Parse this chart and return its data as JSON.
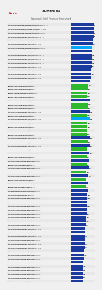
{
  "title": "3DMark V1",
  "subtitle": "Reasonable Intel Processor Benchmark",
  "bg_color": "#f0f0f0",
  "bar_color_blue": "#1a3a9f",
  "bar_color_green": "#2eb82e",
  "bar_color_highlight_blue": "#00aaff",
  "bar_color_highlight_green": "#00dd00",
  "text_color": "#111111",
  "title_color": "#111111",
  "entries": [
    {
      "label": "Intel Core i9-13900K 5.8GHz (Solo) DDR5-5600 w/test 4 cs Turbo 1.1",
      "value": 2950,
      "is_amd": false,
      "highlight": false
    },
    {
      "label": "Intel Core i9-13900KF 5.8GHz (Solo) DDR5-5600 w/test 4 cs Turbo",
      "value": 2920,
      "is_amd": false,
      "highlight": false
    },
    {
      "label": "Intel Core i9-13900K 5.8GHz (Solo) DDR5-5200 w/test 4 cs Turbo",
      "value": 2890,
      "is_amd": false,
      "highlight": false
    },
    {
      "label": "Intel Core i9-13900K 5.8GHz DDR5-5200 w/test 4 cs Turbo 1.1",
      "value": 2860,
      "is_amd": false,
      "highlight": false
    },
    {
      "label": "Intel Core i9-13900K 5.5GHz DDR5-5200 w/test 4 cs Turbo",
      "value": 2820,
      "is_amd": false,
      "highlight": false
    },
    {
      "label": "Intel Core i9-13900K 5.4GHz DDR5-5200 w/test 4 cs Turbo",
      "value": 2780,
      "is_amd": false,
      "highlight": false
    },
    {
      "label": "Intel Core i7-13700K 5.4GHz (Solo) DDR5-5200 w/test 4 cs Turbo",
      "value": 2750,
      "is_amd": false,
      "highlight": true
    },
    {
      "label": "Intel Core i7-13700K 5.4GHz DDR5-5200 w/test 4 cs Turbo",
      "value": 2720,
      "is_amd": false,
      "highlight": false
    },
    {
      "label": "Intel Core i9-13900K 5.8GHz DDR4-3600 w/test 4 cs Turbo 1.1",
      "value": 2690,
      "is_amd": false,
      "highlight": false
    },
    {
      "label": "Intel Core i9-12900K 5.2GHz DDR5-5200 w/test 4 cs Turbo 1.1",
      "value": 2660,
      "is_amd": false,
      "highlight": false
    },
    {
      "label": "Intel Core i9-12900K 5.2GHz DDR4-3600 w/test 4 cs Turbo 1.1",
      "value": 2630,
      "is_amd": false,
      "highlight": false
    },
    {
      "label": "Intel Core i9-13900K 5.8GHz DDR4-3600 w/test 4 cs Turbo",
      "value": 2600,
      "is_amd": false,
      "highlight": false
    },
    {
      "label": "Intel Core i9-12900KF 5.2GHz DDR4-3200 w/test 4 cs Turbo 1.1",
      "value": 2570,
      "is_amd": false,
      "highlight": false
    },
    {
      "label": "Intel Core i9-12900K 5.2GHz DDR5-5200 w/test 4 cs Turbo",
      "value": 2540,
      "is_amd": false,
      "highlight": false
    },
    {
      "label": "Intel Core i9-12900K 5.2GHz DDR4-3600 w/test 4 cs Turbo",
      "value": 2510,
      "is_amd": false,
      "highlight": false
    },
    {
      "label": "Intel Core i7-12700K 5.0GHz DDR5-5200 w/test 4 cs Turbo",
      "value": 2480,
      "is_amd": false,
      "highlight": false
    },
    {
      "label": "AMD Ryzen 9 5950X 4.9GHz DDR4-3800 w/test 4 cs",
      "value": 2200,
      "is_amd": true,
      "highlight": false
    },
    {
      "label": "AMD Ryzen 9 5900X 4.8GHz DDR4-3800 w/test 4 cs",
      "value": 2160,
      "is_amd": true,
      "highlight": false
    },
    {
      "label": "AMD Ryzen 7 5800X3D 4.5GHz DDR4-3800 w/test 4 cs",
      "value": 2120,
      "is_amd": true,
      "highlight": false
    },
    {
      "label": "AMD Ryzen 7 5800X 4.7GHz DDR4-3800 w/test 4 cs",
      "value": 2080,
      "is_amd": true,
      "highlight": false
    },
    {
      "label": "Intel Core i5-12600K 4.9GHz DDR5-5200 w/test 4 cs Turbo",
      "value": 2450,
      "is_amd": false,
      "highlight": false
    },
    {
      "label": "AMD Ryzen 9 5950X 4.9GHz DDR4-3600 w/test 4 cs",
      "value": 2180,
      "is_amd": true,
      "highlight": false
    },
    {
      "label": "AMD Ryzen 9 5900X 4.8GHz DDR4-3600 w/test 4 cs",
      "value": 2140,
      "is_amd": true,
      "highlight": false
    },
    {
      "label": "Intel Core i7-12700K 5.0GHz DDR4-3600 w/test 4 cs Turbo",
      "value": 2420,
      "is_amd": false,
      "highlight": false
    },
    {
      "label": "AMD Ryzen 5 5600X 4.6GHz DDR4-3800 w/test 4 cs",
      "value": 2040,
      "is_amd": true,
      "highlight": false
    },
    {
      "label": "Intel Core i5-13600K 5.1GHz DDR5-5200 w/test 4 cs Turbo",
      "value": 2390,
      "is_amd": false,
      "highlight": true
    },
    {
      "label": "AMD Ryzen 9 7900X 5.6GHz DDR5-6000 w/test 4 cs",
      "value": 2100,
      "is_amd": true,
      "highlight": false
    },
    {
      "label": "AMD Ryzen 9 7950X 5.7GHz DDR5-6000 w/test 4 cs",
      "value": 2120,
      "is_amd": true,
      "highlight": false
    },
    {
      "label": "AMD Ryzen 7 7700X 5.4GHz DDR5-6000 w/test 4 cs",
      "value": 2060,
      "is_amd": true,
      "highlight": false
    },
    {
      "label": "AMD Ryzen 5 7600X 5.3GHz DDR5-6000 w/test 4 cs",
      "value": 2000,
      "is_amd": true,
      "highlight": false
    },
    {
      "label": "Intel Core i5-12600K 4.9GHz DDR4-3600 w/test 4 cs Turbo",
      "value": 2360,
      "is_amd": false,
      "highlight": false
    },
    {
      "label": "AMD Ryzen 9 5950X 4.9GHz DDR4-3200 w/test 4 cs",
      "value": 2150,
      "is_amd": true,
      "highlight": false
    },
    {
      "label": "Intel Core i5-13600K 5.1GHz DDR4-3600 w/test 4 cs Turbo",
      "value": 2330,
      "is_amd": false,
      "highlight": false
    },
    {
      "label": "AMD Ryzen 5 5600X 4.6GHz DDR4-3600 w/test 4 cs",
      "value": 2010,
      "is_amd": true,
      "highlight": false
    },
    {
      "label": "Intel Core i3-13100 4.5GHz DDR5-5200 w/test 4 cs Turbo",
      "value": 2300,
      "is_amd": false,
      "highlight": false
    },
    {
      "label": "AMD Ryzen 3 3300X 4.3GHz DDR4-3600 w/test 4 cs",
      "value": 1980,
      "is_amd": true,
      "highlight": false
    },
    {
      "label": "Intel Core i3-12100 4.3GHz DDR5-5200 w/test 4 cs Turbo",
      "value": 2270,
      "is_amd": false,
      "highlight": false
    },
    {
      "label": "AMD Ryzen 5 5600 4.4GHz DDR4-3600 w/test 4 cs",
      "value": 1970,
      "is_amd": true,
      "highlight": false
    },
    {
      "label": "Intel Core i3-13100 4.5GHz DDR4-3200 w/test 4 cs Turbo",
      "value": 2240,
      "is_amd": false,
      "highlight": false
    },
    {
      "label": "AMD Ryzen 5 5500 4.2GHz DDR4-3200 w/test 4 cs",
      "value": 1940,
      "is_amd": true,
      "highlight": false
    },
    {
      "label": "Intel Core i3-12100 4.3GHz DDR4-3200 w/test 4 cs Turbo",
      "value": 2210,
      "is_amd": false,
      "highlight": false
    },
    {
      "label": "AMD Ryzen 5 4600G 4.2GHz DDR4-3200 w/test 4 cs",
      "value": 1900,
      "is_amd": true,
      "highlight": false
    },
    {
      "label": "Intel Pentium Gold G7400 3.7GHz DDR5-4400 w/test 4 cs",
      "value": 2180,
      "is_amd": false,
      "highlight": false
    },
    {
      "label": "AMD Athlon 3000G 3.5GHz DDR4-2933 w/test 4 cs",
      "value": 1860,
      "is_amd": true,
      "highlight": false
    },
    {
      "label": "Intel Pentium Gold G7400 3.7GHz DDR4-3200 w/test 4 cs",
      "value": 2150,
      "is_amd": false,
      "highlight": false
    },
    {
      "label": "Intel Core i9-12900K 5.2GHz DDR5-5200 stock",
      "value": 2120,
      "is_amd": false,
      "highlight": false
    },
    {
      "label": "Intel Core i5-12400 4.4GHz DDR5-5200 w/test 4 cs Turbo",
      "value": 2090,
      "is_amd": false,
      "highlight": false
    },
    {
      "label": "Intel Core i5-12400 4.4GHz DDR4-3200 w/test 4 cs Turbo",
      "value": 2060,
      "is_amd": false,
      "highlight": false
    },
    {
      "label": "Intel Core i7-12700 4.9GHz DDR5-5200 w/test 4 cs Turbo",
      "value": 2030,
      "is_amd": false,
      "highlight": false
    },
    {
      "label": "Intel Core i7-12700 4.9GHz DDR4-3200 w/test 4 cs Turbo",
      "value": 2000,
      "is_amd": false,
      "highlight": false
    },
    {
      "label": "Intel Core i5-13400 4.6GHz DDR5-5200 w/test 4 cs Turbo",
      "value": 1970,
      "is_amd": false,
      "highlight": false
    },
    {
      "label": "Intel Core i5-13400 4.6GHz DDR4-3200 w/test 4 cs Turbo",
      "value": 1940,
      "is_amd": false,
      "highlight": false
    },
    {
      "label": "Intel Core i3-12300 4.4GHz DDR5-5200 w/test 4 cs Turbo",
      "value": 1910,
      "is_amd": false,
      "highlight": false
    },
    {
      "label": "Intel Core i3-12300 4.4GHz DDR4-3200 w/test 4 cs Turbo",
      "value": 1880,
      "is_amd": false,
      "highlight": false
    },
    {
      "label": "Intel Core i9-11900K 5.2GHz DDR4-3600 w/test 4 cs Turbo",
      "value": 1850,
      "is_amd": false,
      "highlight": false
    },
    {
      "label": "Intel Core i7-11700K 5.0GHz DDR4-3600 w/test 4 cs Turbo",
      "value": 1820,
      "is_amd": false,
      "highlight": false
    },
    {
      "label": "Intel Core i5-11600K 4.9GHz DDR4-3600 w/test 4 cs Turbo",
      "value": 1790,
      "is_amd": false,
      "highlight": false
    },
    {
      "label": "Intel Core i5-11400 4.4GHz DDR4-3200 w/test 4 cs Turbo",
      "value": 1760,
      "is_amd": false,
      "highlight": false
    },
    {
      "label": "Intel Core i9-10900K 5.3GHz DDR4-3600 w/test 4 cs Turbo",
      "value": 1730,
      "is_amd": false,
      "highlight": false
    },
    {
      "label": "Intel Core i7-10700K 5.1GHz DDR4-3600 w/test 4 cs Turbo",
      "value": 1700,
      "is_amd": false,
      "highlight": false
    },
    {
      "label": "Intel Core i5-10600K 4.8GHz DDR4-3600 w/test 4 cs Turbo",
      "value": 1670,
      "is_amd": false,
      "highlight": false
    },
    {
      "label": "Intel Core i5-10400 4.3GHz DDR4-2933 w/test 4 cs Turbo",
      "value": 1640,
      "is_amd": false,
      "highlight": false
    },
    {
      "label": "Intel Core i3-10320 4.6GHz DDR4-3200 w/test 4 cs Turbo",
      "value": 1610,
      "is_amd": false,
      "highlight": false
    },
    {
      "label": "Intel Core i3-10100 4.3GHz DDR4-2933 w/test 4 cs Turbo",
      "value": 1580,
      "is_amd": false,
      "highlight": false
    },
    {
      "label": "Intel Core i9-9900K 5.0GHz DDR4-3200 w/test 4 cs Turbo",
      "value": 1550,
      "is_amd": false,
      "highlight": false
    },
    {
      "label": "Intel Core i7-9700K 4.9GHz DDR4-3200 w/test 4 cs Turbo",
      "value": 1520,
      "is_amd": false,
      "highlight": false
    },
    {
      "label": "Intel Core i5-9600K 4.6GHz DDR4-3200 w/test 4 cs Turbo",
      "value": 1490,
      "is_amd": false,
      "highlight": false
    },
    {
      "label": "Intel Core i5-9400F 4.1GHz DDR4-2666 w/test 4 cs Turbo",
      "value": 1460,
      "is_amd": false,
      "highlight": false
    },
    {
      "label": "Intel Core i3-9320 4.4GHz DDR4-2400 w/test 4 cs Turbo",
      "value": 1430,
      "is_amd": false,
      "highlight": false
    }
  ]
}
